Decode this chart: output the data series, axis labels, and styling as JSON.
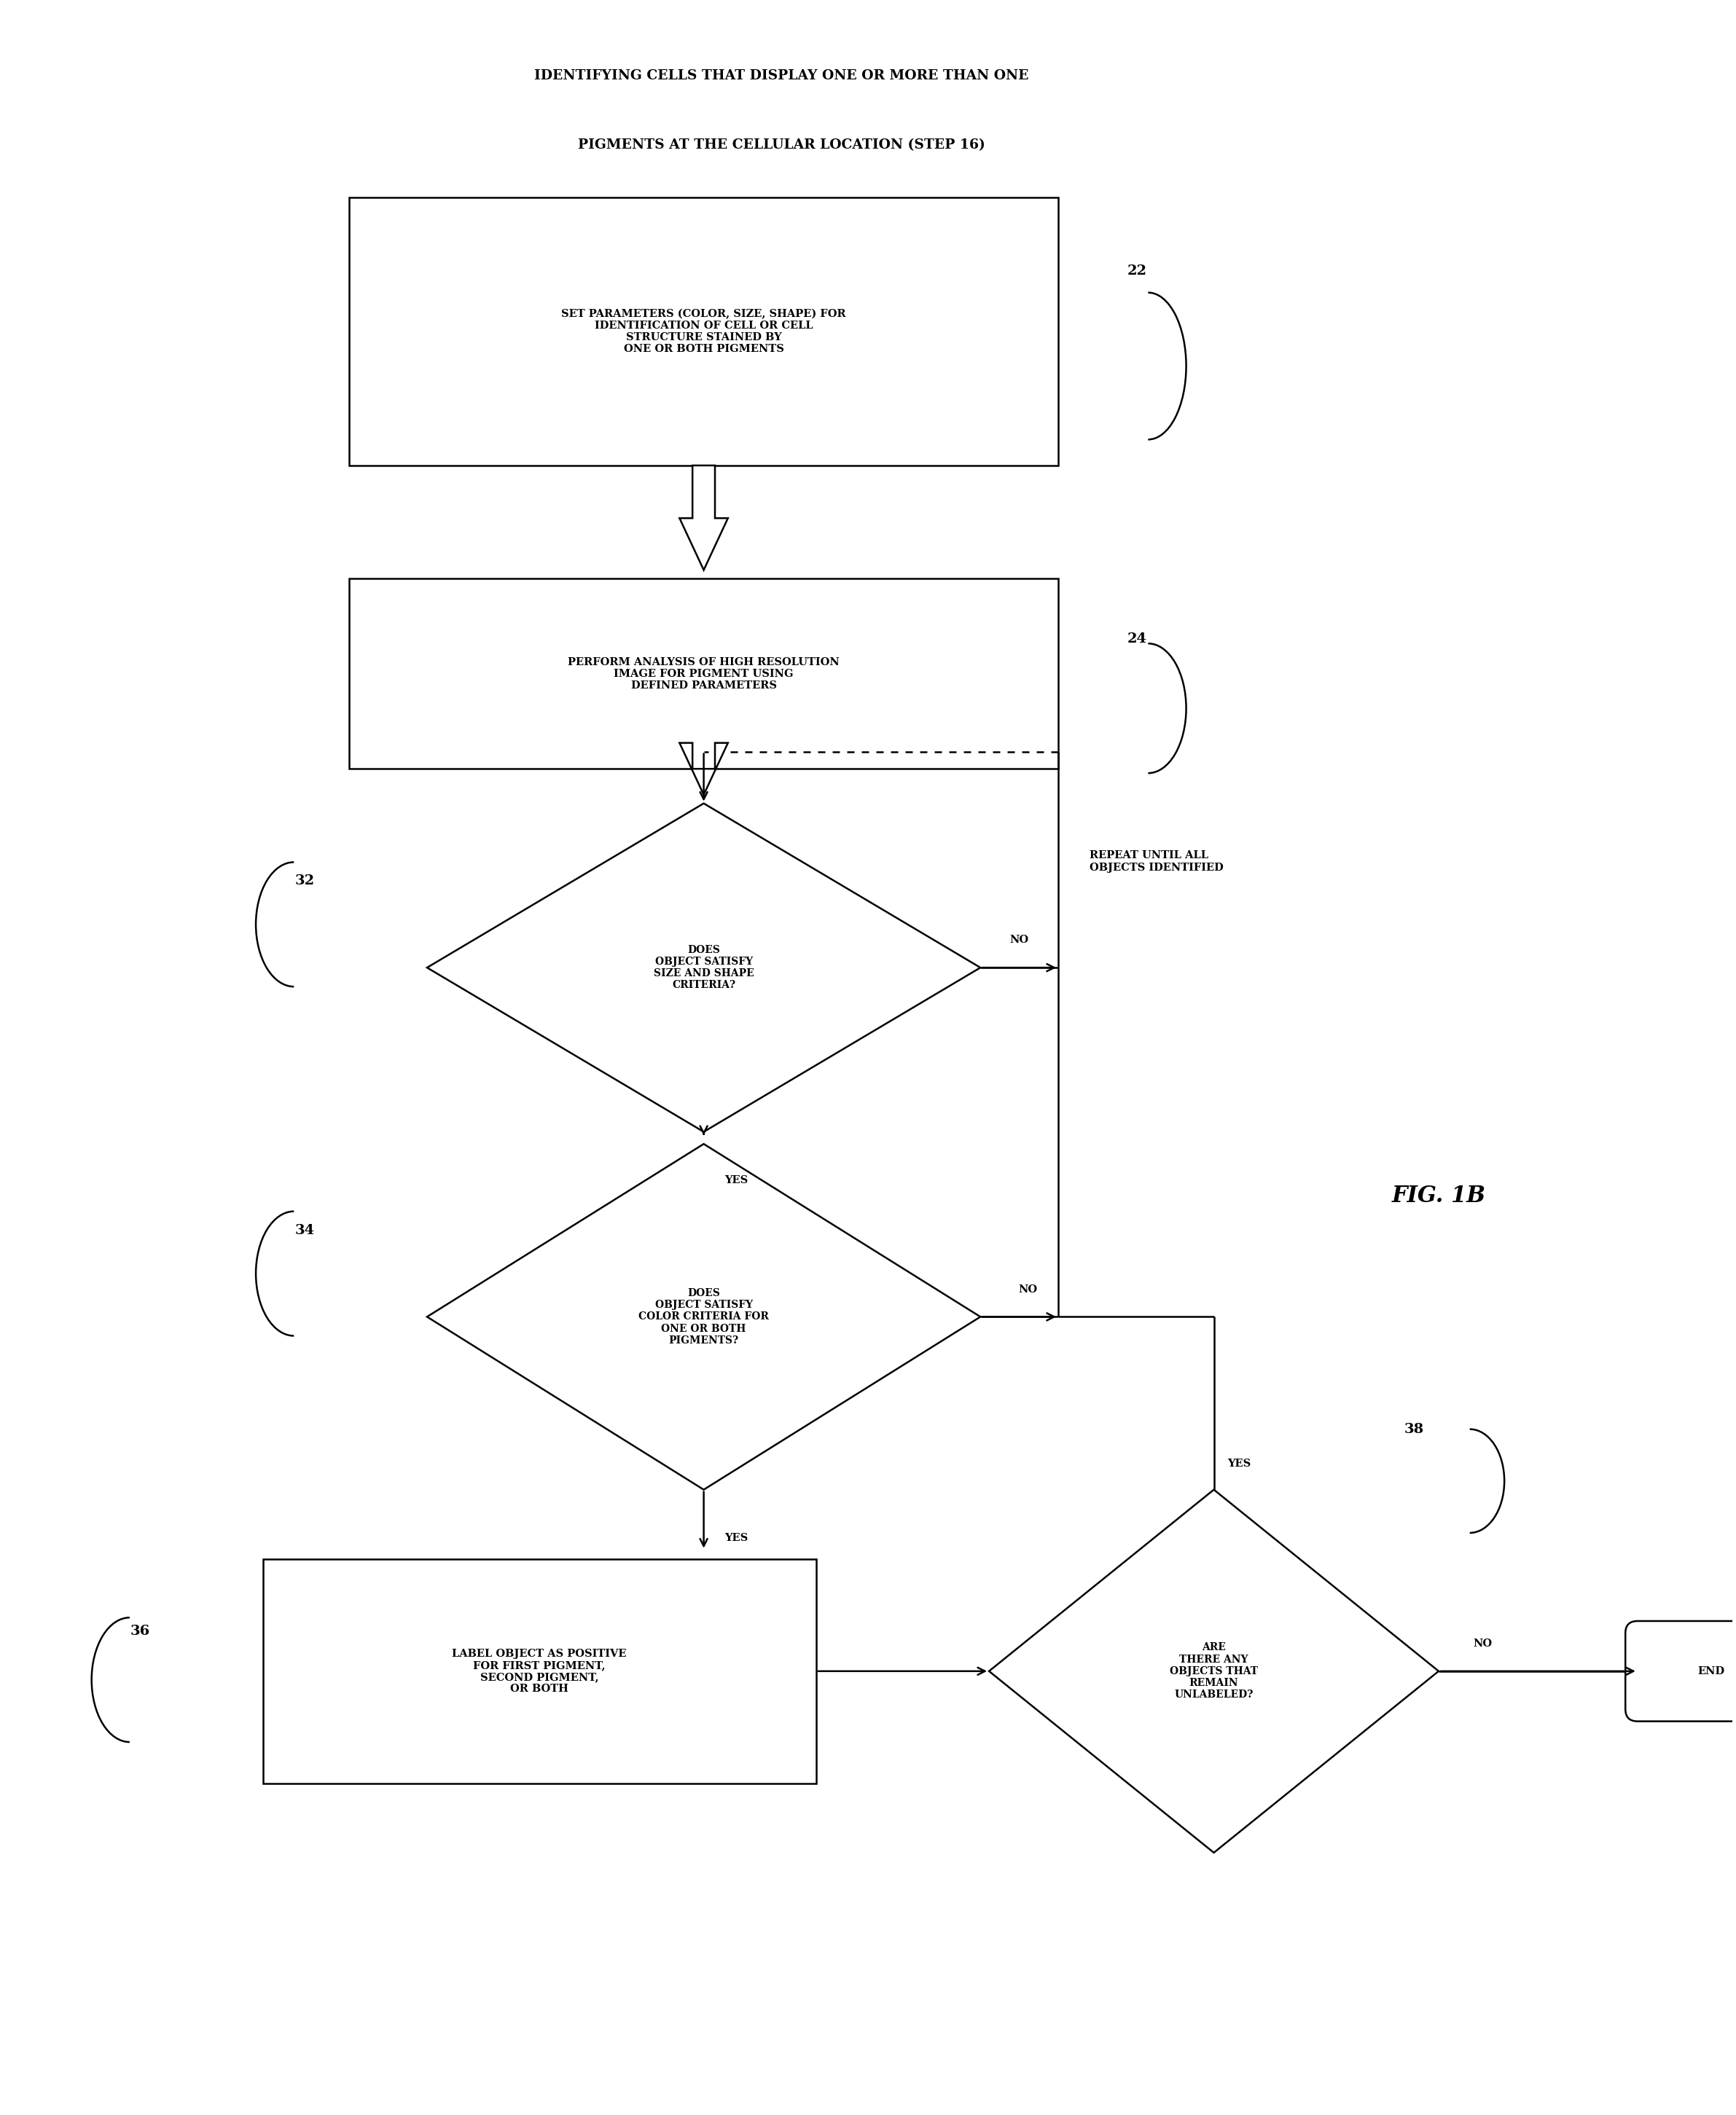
{
  "title_line1": "IDENTIFYING CELLS THAT DISPLAY ONE OR MORE THAN ONE",
  "title_line2": "PIGMENTS AT THE CELLULAR LOCATION (STEP 16)",
  "fig_label": "FIG. 1B",
  "box22_text": "SET PARAMETERS (COLOR, SIZE, SHAPE) FOR\nIDENTIFICATION OF CELL OR CELL\nSTRUCTURE STAINED BY\nONE OR BOTH PIGMENTS",
  "box22_label": "22",
  "box24_text": "PERFORM ANALYSIS OF HIGH RESOLUTION\nIMAGE FOR PIGMENT USING\nDEFINED PARAMETERS",
  "box24_label": "24",
  "diamond32_text": "DOES\nOBJECT SATISFY\nSIZE AND SHAPE\nCRITERIA?",
  "diamond32_label": "32",
  "diamond34_text": "DOES\nOBJECT SATISFY\nCOLOR CRITERIA FOR\nONE OR BOTH\nPIGMENTS?",
  "diamond34_label": "34",
  "box36_text": "LABEL OBJECT AS POSITIVE\nFOR FIRST PIGMENT,\nSECOND PIGMENT,\nOR BOTH",
  "box36_label": "36",
  "diamond38_text": "ARE\nTHERE ANY\nOBJECTS THAT\nREMAIN\nUNLABELED?",
  "diamond38_label": "38",
  "repeat_text": "REPEAT UNTIL ALL\nOBJECTS IDENTIFIED",
  "no_label_32": "NO",
  "yes_label_32": "YES",
  "no_label_34": "NO",
  "yes_label_34": "YES",
  "no_label_38": "NO",
  "yes_label_38": "YES",
  "end_text": "END",
  "bg_color": "#ffffff",
  "text_color": "#000000",
  "line_color": "#000000",
  "lw": 1.8
}
